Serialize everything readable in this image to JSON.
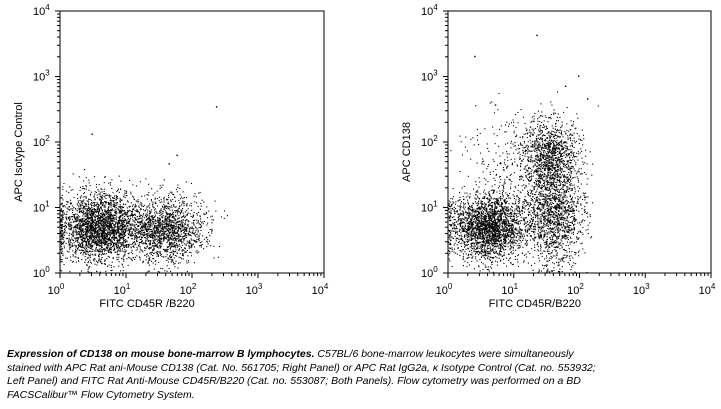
{
  "chart_data": [
    {
      "type": "scatter",
      "subtype": "flow-cytometry-dot-plot",
      "xlabel": "FITC CD45R /B220",
      "ylabel": "APC Isotype Control",
      "xscale": "log",
      "yscale": "log",
      "xlim": [
        1,
        10000
      ],
      "ylim": [
        1,
        10000
      ],
      "x_ticks": [
        {
          "value": 1,
          "base": "10",
          "exp": "0"
        },
        {
          "value": 10,
          "base": "10",
          "exp": "1"
        },
        {
          "value": 100,
          "base": "10",
          "exp": "2"
        },
        {
          "value": 1000,
          "base": "10",
          "exp": "3"
        },
        {
          "value": 10000,
          "base": "10",
          "exp": "4"
        }
      ],
      "y_ticks": [
        {
          "value": 1,
          "base": "10",
          "exp": "0"
        },
        {
          "value": 10,
          "base": "10",
          "exp": "1"
        },
        {
          "value": 100,
          "base": "10",
          "exp": "2"
        },
        {
          "value": 1000,
          "base": "10",
          "exp": "3"
        },
        {
          "value": 10000,
          "base": "10",
          "exp": "4"
        }
      ],
      "clusters": [
        {
          "x_center": 4,
          "y_center": 5,
          "x_spread_decades": 0.32,
          "y_spread_decades": 0.26,
          "count": 2600
        },
        {
          "x_center": 40,
          "y_center": 4.5,
          "x_spread_decades": 0.3,
          "y_spread_decades": 0.25,
          "count": 1500
        }
      ],
      "outliers": [
        [
          58,
          62
        ],
        [
          44,
          46
        ],
        [
          230,
          340
        ],
        [
          3,
          130
        ]
      ],
      "grid": false,
      "legend": "none"
    },
    {
      "type": "scatter",
      "subtype": "flow-cytometry-dot-plot",
      "xlabel": "FITC CD45R/B220",
      "ylabel": "APC CD138",
      "xscale": "log",
      "yscale": "log",
      "xlim": [
        1,
        10000
      ],
      "ylim": [
        1,
        10000
      ],
      "x_ticks": [
        {
          "value": 1,
          "base": "10",
          "exp": "0"
        },
        {
          "value": 10,
          "base": "10",
          "exp": "1"
        },
        {
          "value": 100,
          "base": "10",
          "exp": "2"
        },
        {
          "value": 1000,
          "base": "10",
          "exp": "3"
        },
        {
          "value": 10000,
          "base": "10",
          "exp": "4"
        }
      ],
      "y_ticks": [
        {
          "value": 1,
          "base": "10",
          "exp": "0"
        },
        {
          "value": 10,
          "base": "10",
          "exp": "1"
        },
        {
          "value": 100,
          "base": "10",
          "exp": "2"
        },
        {
          "value": 1000,
          "base": "10",
          "exp": "3"
        },
        {
          "value": 10000,
          "base": "10",
          "exp": "4"
        }
      ],
      "clusters": [
        {
          "x_center": 4,
          "y_center": 5,
          "x_spread_decades": 0.3,
          "y_spread_decades": 0.25,
          "count": 2400
        },
        {
          "x_center": 40,
          "y_center": 7,
          "x_spread_decades": 0.22,
          "y_spread_decades": 0.38,
          "count": 1300
        },
        {
          "x_center": 35,
          "y_center": 60,
          "x_spread_decades": 0.22,
          "y_spread_decades": 0.3,
          "count": 1100
        },
        {
          "x_center": 12,
          "y_center": 40,
          "x_spread_decades": 0.45,
          "y_spread_decades": 0.45,
          "count": 350
        }
      ],
      "outliers": [
        [
          22,
          4200
        ],
        [
          2.5,
          2000
        ],
        [
          95,
          1000
        ],
        [
          60,
          700
        ],
        [
          130,
          450
        ]
      ],
      "grid": false,
      "legend": "none"
    }
  ],
  "caption": {
    "bold_lead": "Expression of CD138 on mouse bone-marrow B lymphocytes.",
    "line1_rest": " C57BL/6 bone-marrow leukocytes were simultaneously",
    "line2": "stained with APC Rat ani-Mouse CD138 (Cat. No. 561705; Right Panel) or APC Rat IgG2a, κ Isotype Control (Cat. no. 553932;",
    "line3": "Left Panel) and FITC Rat Anti-Mouse CD45R/B220 (Cat. no. 553087; Both Panels). Flow cytometry was performed on a BD",
    "line4": "FACSCalibur™ Flow Cytometry System."
  }
}
